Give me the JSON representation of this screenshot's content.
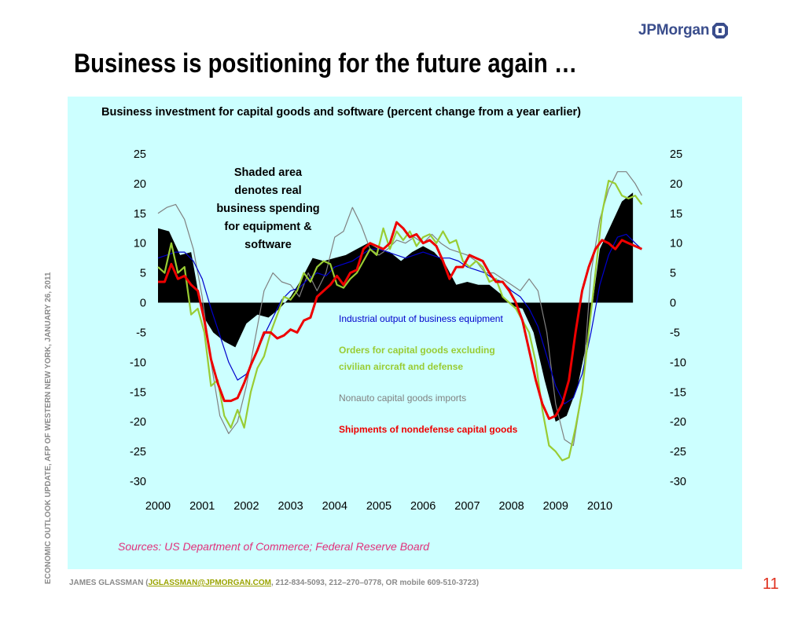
{
  "header": {
    "logo_text": "JPMorgan",
    "title": "Business is positioning for the future again …"
  },
  "sidebar_text": "ECONOMIC OUTLOOK UPDATE, AFP OF WESTERN NEW YORK, JANUARY 26, 2011",
  "footer": {
    "prefix": "JAMES GLASSMAN (",
    "email": "JGLASSMAN@JPMORGAN.COM",
    "suffix": ", 212-834-5093, 212–270–0778, OR mobile 609-510-3723)",
    "page_number": "11"
  },
  "colors": {
    "panel_bg": "#ccffff",
    "shaded": "#000000",
    "industrial": "#0000cc",
    "orders": "#99cc33",
    "imports": "#808080",
    "shipments": "#ee0000",
    "source": "#e0307a",
    "logo": "#3a4d8c"
  },
  "chart_data": {
    "type": "line",
    "title": "Business investment for capital goods and software (percent change from a year earlier)",
    "x_ticks": [
      "2000",
      "2001",
      "2002",
      "2003",
      "2004",
      "2005",
      "2006",
      "2007",
      "2008",
      "2009",
      "2010"
    ],
    "xlim": [
      2000,
      2011.05
    ],
    "ylim": [
      -30,
      25
    ],
    "y_ticks": [
      25,
      20,
      15,
      10,
      5,
      0,
      -5,
      -10,
      -15,
      -20,
      -25,
      -30
    ],
    "annotation": [
      "Shaded area",
      "denotes real",
      "business spending",
      "for equipment &",
      "software"
    ],
    "source": "Sources: US Department of Commerce; Federal Reserve Board",
    "shaded_area": {
      "name": "real business spending for equipment & software",
      "x": [
        2000.0,
        2000.25,
        2000.5,
        2000.75,
        2001.0,
        2001.25,
        2001.5,
        2001.75,
        2002.0,
        2002.25,
        2002.5,
        2002.75,
        2003.0,
        2003.25,
        2003.5,
        2003.75,
        2004.0,
        2004.25,
        2004.5,
        2004.75,
        2005.0,
        2005.25,
        2005.5,
        2005.75,
        2006.0,
        2006.25,
        2006.5,
        2006.75,
        2007.0,
        2007.25,
        2007.5,
        2007.75,
        2008.0,
        2008.25,
        2008.5,
        2008.75,
        2009.0,
        2009.25,
        2009.5,
        2009.75,
        2010.0,
        2010.25,
        2010.5,
        2010.75
      ],
      "y": [
        12.5,
        12.0,
        8.0,
        8.5,
        -2.0,
        -5.0,
        -6.5,
        -7.5,
        -3.5,
        -2.0,
        -2.5,
        -1.0,
        1.0,
        4.0,
        7.5,
        7.0,
        7.5,
        8.0,
        9.0,
        10.0,
        9.0,
        8.5,
        7.0,
        8.5,
        9.5,
        8.5,
        6.5,
        3.0,
        3.5,
        3.0,
        3.0,
        1.5,
        -0.5,
        -1.0,
        -5.0,
        -13.0,
        -20.0,
        -19.0,
        -14.0,
        -5.0,
        9.0,
        13.0,
        17.0,
        18.5
      ]
    },
    "series": [
      {
        "name": "Industrial output of business equipment",
        "label_lines": [
          "Industrial output of business equipment"
        ],
        "color_key": "industrial",
        "label_bold": false,
        "x": [
          2000.0,
          2000.2,
          2000.4,
          2000.6,
          2000.8,
          2001.0,
          2001.2,
          2001.4,
          2001.6,
          2001.8,
          2002.0,
          2002.2,
          2002.4,
          2002.6,
          2002.8,
          2003.0,
          2003.2,
          2003.4,
          2003.6,
          2003.8,
          2004.0,
          2004.2,
          2004.4,
          2004.6,
          2004.8,
          2005.0,
          2005.2,
          2005.4,
          2005.6,
          2005.8,
          2006.0,
          2006.2,
          2006.4,
          2006.6,
          2006.8,
          2007.0,
          2007.2,
          2007.4,
          2007.6,
          2007.8,
          2008.0,
          2008.2,
          2008.4,
          2008.6,
          2008.8,
          2009.0,
          2009.2,
          2009.4,
          2009.6,
          2009.8,
          2010.0,
          2010.2,
          2010.4,
          2010.6,
          2010.8,
          2010.95
        ],
        "y": [
          7.5,
          8.0,
          8.5,
          8.5,
          7.0,
          4.0,
          -1.0,
          -5.5,
          -10.0,
          -13.0,
          -12.0,
          -9.0,
          -5.5,
          -2.5,
          0.5,
          2.0,
          2.5,
          4.0,
          5.0,
          4.5,
          6.0,
          6.5,
          7.0,
          8.0,
          9.0,
          9.0,
          8.5,
          8.0,
          7.5,
          8.0,
          8.5,
          8.0,
          7.5,
          7.5,
          7.0,
          6.0,
          5.5,
          5.0,
          4.0,
          3.5,
          2.0,
          1.0,
          -1.0,
          -4.0,
          -9.0,
          -14.0,
          -17.0,
          -16.0,
          -12.0,
          -5.0,
          3.0,
          8.0,
          11.0,
          11.5,
          10.0,
          9.0
        ]
      },
      {
        "name": "Orders for capital goods excluding civilian aircraft and defense",
        "label_lines": [
          "Orders for capital goods excluding",
          "civilian aircraft and defense"
        ],
        "color_key": "orders",
        "label_bold": true,
        "x": [
          2000.0,
          2000.15,
          2000.3,
          2000.45,
          2000.6,
          2000.75,
          2000.9,
          2001.05,
          2001.2,
          2001.35,
          2001.5,
          2001.65,
          2001.8,
          2001.95,
          2002.1,
          2002.25,
          2002.4,
          2002.55,
          2002.7,
          2002.85,
          2003.0,
          2003.15,
          2003.3,
          2003.45,
          2003.6,
          2003.75,
          2003.9,
          2004.05,
          2004.2,
          2004.35,
          2004.5,
          2004.65,
          2004.8,
          2004.95,
          2005.1,
          2005.25,
          2005.4,
          2005.55,
          2005.7,
          2005.85,
          2006.0,
          2006.15,
          2006.3,
          2006.45,
          2006.6,
          2006.75,
          2006.9,
          2007.05,
          2007.2,
          2007.35,
          2007.5,
          2007.65,
          2007.8,
          2007.95,
          2008.1,
          2008.25,
          2008.4,
          2008.55,
          2008.7,
          2008.85,
          2009.0,
          2009.15,
          2009.3,
          2009.45,
          2009.6,
          2009.75,
          2009.9,
          2010.05,
          2010.2,
          2010.35,
          2010.5,
          2010.65,
          2010.8,
          2010.95
        ],
        "y": [
          6.0,
          5.0,
          10.0,
          5.0,
          6.0,
          -2.0,
          -1.0,
          -5.0,
          -14.0,
          -13.0,
          -19.0,
          -21.0,
          -18.0,
          -21.0,
          -15.0,
          -11.0,
          -9.0,
          -5.0,
          -2.0,
          1.0,
          0.5,
          2.0,
          5.0,
          3.5,
          6.0,
          7.0,
          6.5,
          3.0,
          2.5,
          4.0,
          5.0,
          7.0,
          9.0,
          8.0,
          12.5,
          9.0,
          12.0,
          10.5,
          12.0,
          9.5,
          11.0,
          11.5,
          10.0,
          12.0,
          10.0,
          10.5,
          7.0,
          6.0,
          7.0,
          6.0,
          3.5,
          4.0,
          1.0,
          0.0,
          -1.0,
          -3.0,
          -5.0,
          -10.0,
          -18.0,
          -24.0,
          -25.0,
          -26.5,
          -26.0,
          -21.0,
          -15.0,
          -5.0,
          5.0,
          15.0,
          20.5,
          20.0,
          18.0,
          17.5,
          18.0,
          16.5
        ]
      },
      {
        "name": "Nonauto capital goods imports",
        "label_lines": [
          "Nonauto capital goods imports"
        ],
        "color_key": "imports",
        "label_bold": false,
        "x": [
          2000.0,
          2000.2,
          2000.4,
          2000.6,
          2000.8,
          2001.0,
          2001.2,
          2001.4,
          2001.6,
          2001.8,
          2002.0,
          2002.2,
          2002.4,
          2002.6,
          2002.8,
          2003.0,
          2003.2,
          2003.4,
          2003.6,
          2003.8,
          2004.0,
          2004.2,
          2004.4,
          2004.6,
          2004.8,
          2005.0,
          2005.2,
          2005.4,
          2005.6,
          2005.8,
          2006.0,
          2006.2,
          2006.4,
          2006.6,
          2006.8,
          2007.0,
          2007.2,
          2007.4,
          2007.6,
          2007.8,
          2008.0,
          2008.2,
          2008.4,
          2008.6,
          2008.8,
          2009.0,
          2009.2,
          2009.4,
          2009.6,
          2009.8,
          2010.0,
          2010.2,
          2010.4,
          2010.6,
          2010.8,
          2010.95
        ],
        "y": [
          15.0,
          16.0,
          16.5,
          14.0,
          9.0,
          1.0,
          -10.0,
          -19.0,
          -22.0,
          -20.0,
          -14.0,
          -6.0,
          2.0,
          5.0,
          3.5,
          3.0,
          1.0,
          5.0,
          2.0,
          5.0,
          11.0,
          12.0,
          16.0,
          13.0,
          9.0,
          8.0,
          9.0,
          10.5,
          10.0,
          11.0,
          10.0,
          11.5,
          10.0,
          9.0,
          8.5,
          8.0,
          7.0,
          5.0,
          5.0,
          4.0,
          3.0,
          2.0,
          4.0,
          2.0,
          -5.0,
          -17.0,
          -23.0,
          -24.0,
          -15.0,
          5.0,
          14.0,
          19.0,
          22.0,
          22.0,
          20.0,
          18.0
        ]
      },
      {
        "name": "Shipments of nondefense capital goods",
        "label_lines": [
          "Shipments of nondefense capital goods"
        ],
        "color_key": "shipments",
        "label_bold": true,
        "x": [
          2000.0,
          2000.15,
          2000.3,
          2000.45,
          2000.6,
          2000.75,
          2000.9,
          2001.05,
          2001.2,
          2001.35,
          2001.5,
          2001.65,
          2001.8,
          2001.95,
          2002.1,
          2002.25,
          2002.4,
          2002.55,
          2002.7,
          2002.85,
          2003.0,
          2003.15,
          2003.3,
          2003.45,
          2003.6,
          2003.75,
          2003.9,
          2004.05,
          2004.2,
          2004.35,
          2004.5,
          2004.65,
          2004.8,
          2004.95,
          2005.1,
          2005.25,
          2005.4,
          2005.55,
          2005.7,
          2005.85,
          2006.0,
          2006.15,
          2006.3,
          2006.45,
          2006.6,
          2006.75,
          2006.9,
          2007.05,
          2007.2,
          2007.35,
          2007.5,
          2007.65,
          2007.8,
          2007.95,
          2008.1,
          2008.25,
          2008.4,
          2008.55,
          2008.7,
          2008.85,
          2009.0,
          2009.15,
          2009.3,
          2009.45,
          2009.6,
          2009.75,
          2009.9,
          2010.05,
          2010.2,
          2010.35,
          2010.5,
          2010.65,
          2010.8,
          2010.95
        ],
        "y": [
          3.5,
          3.5,
          6.5,
          4.0,
          4.5,
          3.0,
          2.0,
          -3.0,
          -9.5,
          -13.5,
          -16.5,
          -16.5,
          -16.0,
          -13.5,
          -10.5,
          -8.0,
          -5.0,
          -5.0,
          -6.0,
          -5.5,
          -4.5,
          -5.0,
          -3.0,
          -2.5,
          1.0,
          2.0,
          3.0,
          4.5,
          3.0,
          5.0,
          5.5,
          9.0,
          10.0,
          9.5,
          9.0,
          10.0,
          13.5,
          12.5,
          11.0,
          11.5,
          10.0,
          10.5,
          9.5,
          7.0,
          4.0,
          6.0,
          6.0,
          8.0,
          7.5,
          7.0,
          5.0,
          3.5,
          3.5,
          2.0,
          0.0,
          -3.0,
          -8.0,
          -13.0,
          -17.0,
          -19.5,
          -19.0,
          -17.0,
          -13.0,
          -5.0,
          2.0,
          6.0,
          9.0,
          10.5,
          10.0,
          9.0,
          10.5,
          10.0,
          9.5,
          9.0
        ]
      }
    ]
  }
}
